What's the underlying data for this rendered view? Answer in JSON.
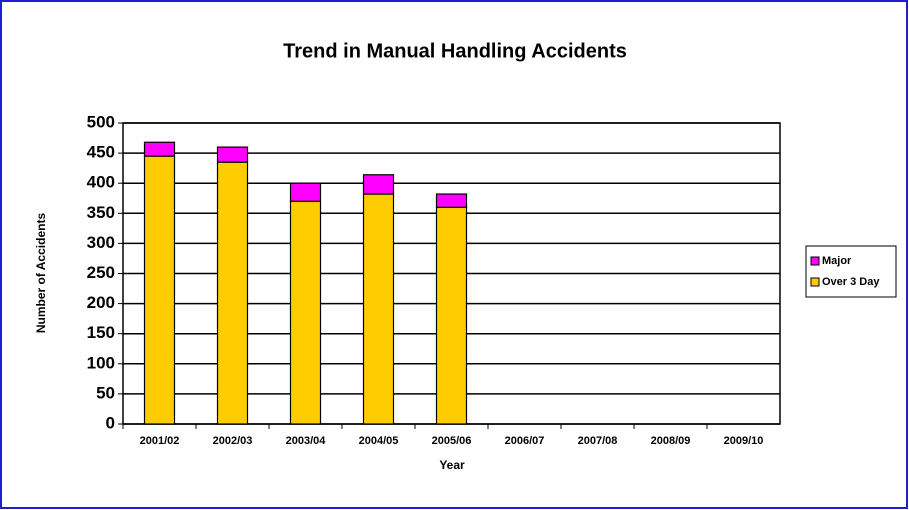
{
  "chart_data": {
    "type": "stacked_bar",
    "title": "Trend in Manual Handling Accidents",
    "x_label": "Year",
    "y_label": "Number of Accidents",
    "categories": [
      "2001/02",
      "2002/03",
      "2003/04",
      "2004/05",
      "2005/06",
      "2006/07",
      "2007/08",
      "2008/09",
      "2009/10"
    ],
    "series": [
      {
        "name": "Over 3 Day",
        "color": "#ffcc00",
        "values": [
          445,
          435,
          370,
          382,
          360,
          null,
          null,
          null,
          null
        ]
      },
      {
        "name": "Major",
        "color": "#ff00ff",
        "values": [
          23,
          25,
          30,
          32,
          22,
          null,
          null,
          null,
          null
        ]
      }
    ],
    "ylim": [
      0,
      500
    ],
    "yticks": [
      0,
      50,
      100,
      150,
      200,
      250,
      300,
      350,
      400,
      450,
      500
    ],
    "grid": true,
    "legend": "right"
  }
}
